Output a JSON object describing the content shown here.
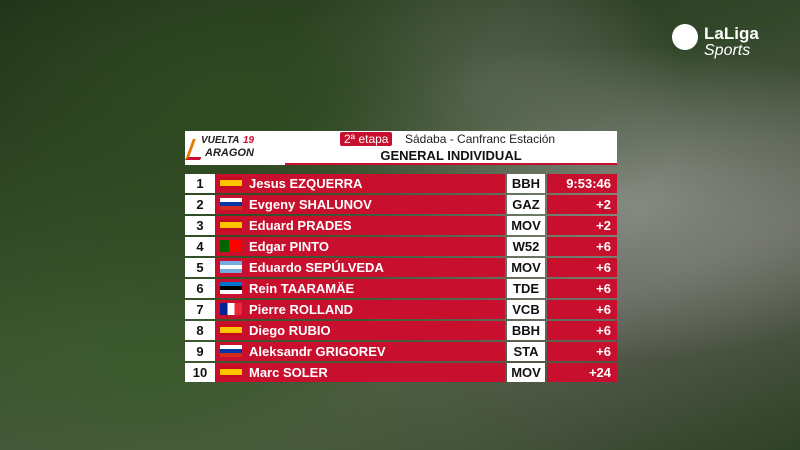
{
  "logo": {
    "line1": "VUELTA",
    "edition": "19",
    "line2": "ARAGON"
  },
  "broadcaster": {
    "name": "LaLiga",
    "sub": "Sports"
  },
  "header": {
    "stage": "2ª etapa",
    "route": "Sádaba - Canfranc Estación",
    "title": "GENERAL INDIVIDUAL"
  },
  "table": {
    "rows": [
      [
        "1",
        "Jesus EZQUERRA",
        "BBH",
        "9:53:46"
      ],
      [
        "2",
        "Evgeny SHALUNOV",
        "GAZ",
        "+2"
      ],
      [
        "3",
        "Eduard PRADES",
        "MOV",
        "+2"
      ],
      [
        "4",
        "Edgar PINTO",
        "W52",
        "+6"
      ],
      [
        "5",
        "Eduardo SEPÚLVEDA",
        "MOV",
        "+6"
      ],
      [
        "6",
        "Rein TAARAMÄE",
        "TDE",
        "+6"
      ],
      [
        "7",
        "Pierre ROLLAND",
        "VCB",
        "+6"
      ],
      [
        "8",
        "Diego RUBIO",
        "BBH",
        "+6"
      ],
      [
        "9",
        "Aleksandr GRIGOREV",
        "STA",
        "+6"
      ],
      [
        "10",
        "Marc SOLER",
        "MOV",
        "+24"
      ]
    ]
  }
}
